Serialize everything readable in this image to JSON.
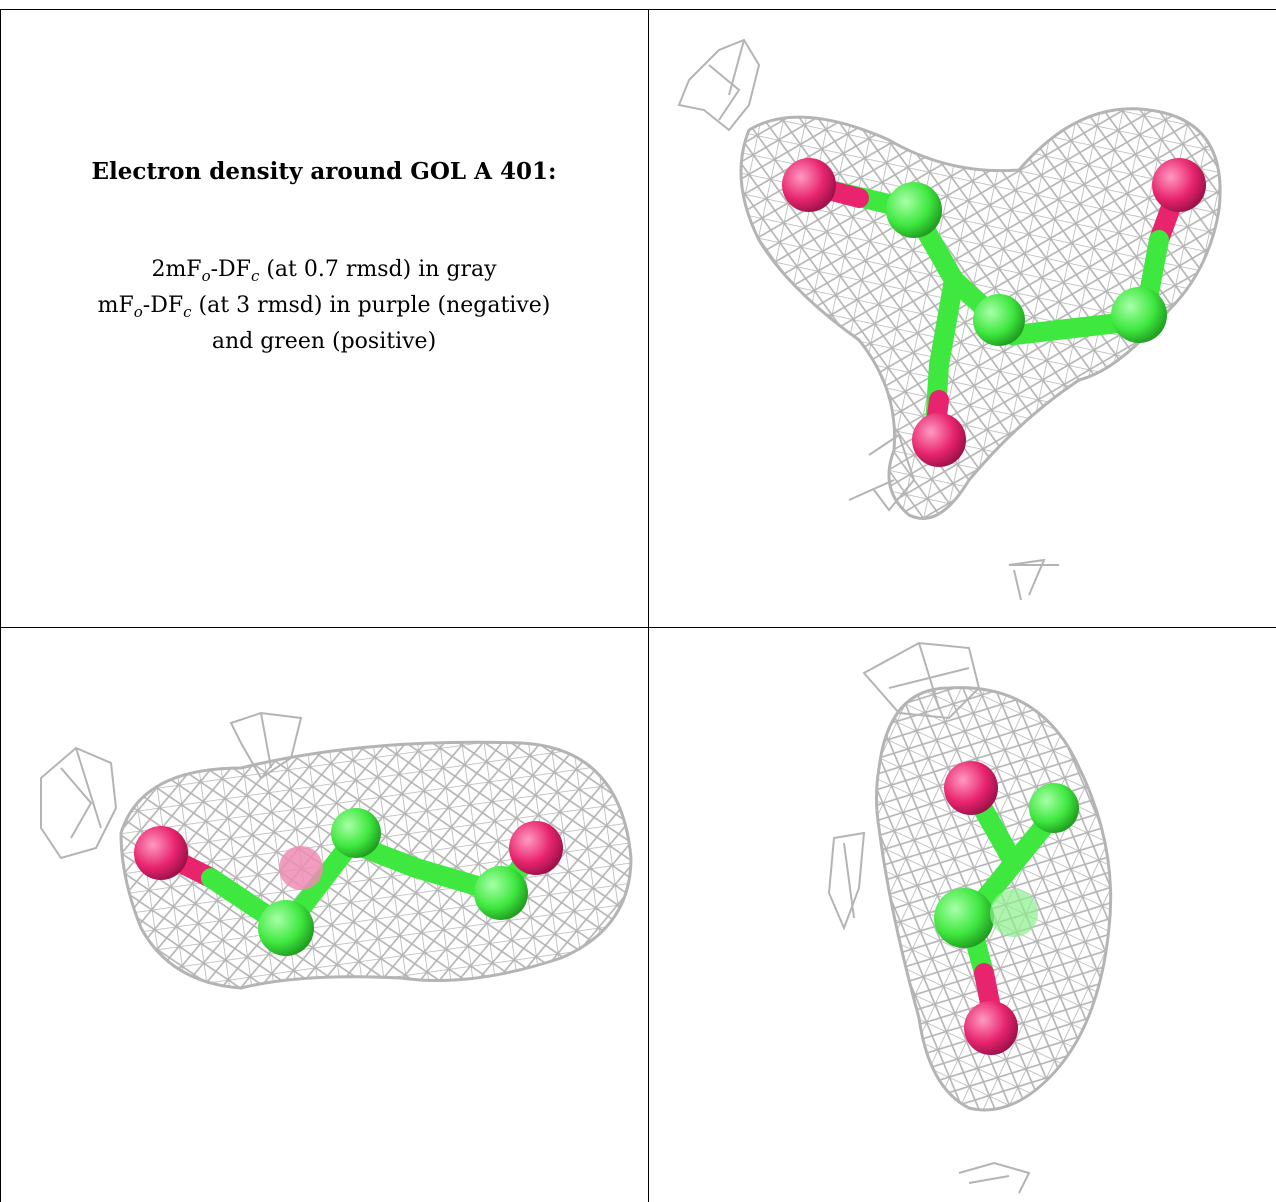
{
  "caption": {
    "title": "Electron density around GOL A 401:",
    "line1": {
      "pre": "2mF",
      "sub1": "o",
      "mid": "-DF",
      "sub2": "c",
      "post": " (at 0.7 rmsd) in gray"
    },
    "line2": {
      "pre": "mF",
      "sub1": "o",
      "mid": "-DF",
      "sub2": "c",
      "post": " (at 3 rmsd) in purple (negative)"
    },
    "line3": "and green (positive)"
  },
  "colors": {
    "mesh": "#b4b4b4",
    "carbon": "#3fe83f",
    "oxygen": "#e8246e",
    "border": "#000000"
  },
  "panels": [
    {
      "view": "top-right"
    },
    {
      "view": "bottom-left"
    },
    {
      "view": "bottom-right"
    }
  ]
}
